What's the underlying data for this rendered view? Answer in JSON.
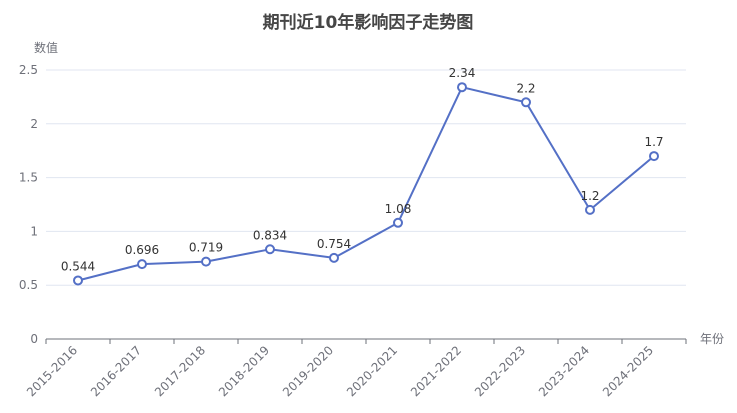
{
  "chart_data": {
    "type": "line",
    "title": "期刊近10年影响因子走势图",
    "xlabel": "年份",
    "ylabel": "数值",
    "categories": [
      "2015-2016",
      "2016-2017",
      "2017-2018",
      "2018-2019",
      "2019-2020",
      "2020-2021",
      "2021-2022",
      "2022-2023",
      "2023-2024",
      "2024-2025"
    ],
    "values": [
      0.544,
      0.696,
      0.719,
      0.834,
      0.754,
      1.08,
      2.34,
      2.2,
      1.2,
      1.7
    ],
    "data_labels": [
      "0.544",
      "0.696",
      "0.719",
      "0.834",
      "0.754",
      "1.08",
      "2.34",
      "2.2",
      "1.2",
      "1.7"
    ],
    "ylim": [
      0,
      2.5
    ],
    "yticks": [
      0,
      0.5,
      1,
      1.5,
      2,
      2.5
    ],
    "ytick_labels": [
      "0",
      "0.5",
      "1",
      "1.5",
      "2",
      "2.5"
    ],
    "grid": true,
    "legend": "none",
    "color": "#5470c6"
  }
}
